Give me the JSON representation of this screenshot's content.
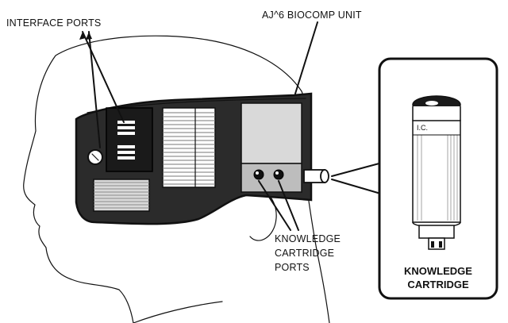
{
  "labels": {
    "interface_ports": "INTERFACE PORTS",
    "unit": "AJ^6 BIOCOMP UNIT",
    "knowledge_ports_line1": "KNOWLEDGE",
    "knowledge_ports_line2": "CARTRIDGE",
    "knowledge_ports_line3": "PORTS",
    "inset_line1": "KNOWLEDGE",
    "inset_line2": "CARTRIDGE",
    "cartridge_marking": "I.C."
  },
  "colors": {
    "ink": "#111111",
    "band": "#2b2b2b",
    "panel_dark": "#1a1a1a",
    "panel_light": "#d9d9d9",
    "hatch": "#bdbdbd",
    "background": "#ffffff"
  }
}
